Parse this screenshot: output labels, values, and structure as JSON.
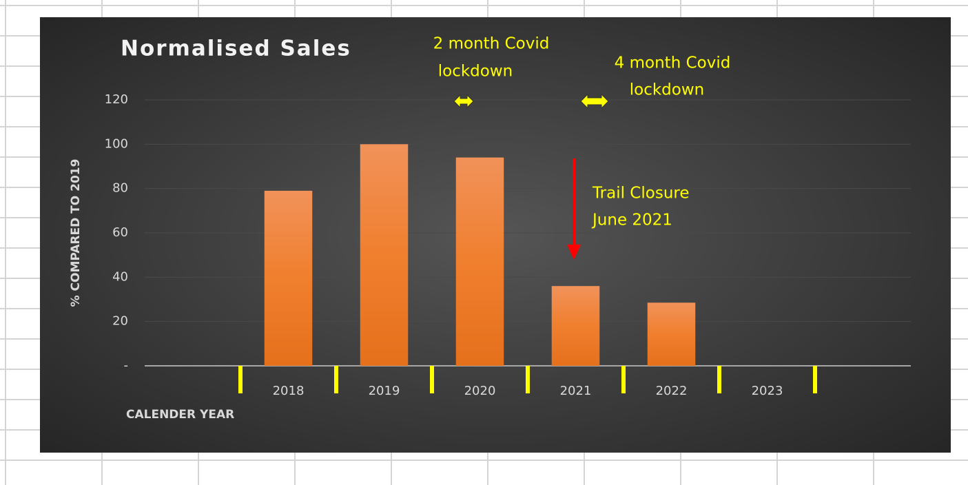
{
  "chart_data": {
    "type": "bar",
    "title": "Normalised Sales",
    "y_label": "% COMPARED TO 2019",
    "x_label": "CALENDER YEAR",
    "categories": [
      null,
      "2018",
      "2019",
      "2020",
      "2021",
      "2022",
      "2023",
      null
    ],
    "values": [
      null,
      79,
      100,
      94,
      36,
      28.5,
      0,
      null
    ],
    "color": "#ee7d2e",
    "ylim": [
      0,
      120
    ],
    "yticks": [
      {
        "value": 0,
        "label": "-"
      },
      20,
      40,
      60,
      80,
      100,
      120
    ],
    "grid": true,
    "annotations": [
      {
        "lines": [
          "2 month Covid",
          "lockdown"
        ]
      },
      {
        "lines": [
          "4 month Covid",
          "lockdown"
        ]
      },
      {
        "lines": [
          "Trail Closure",
          "June 2021"
        ]
      }
    ]
  }
}
